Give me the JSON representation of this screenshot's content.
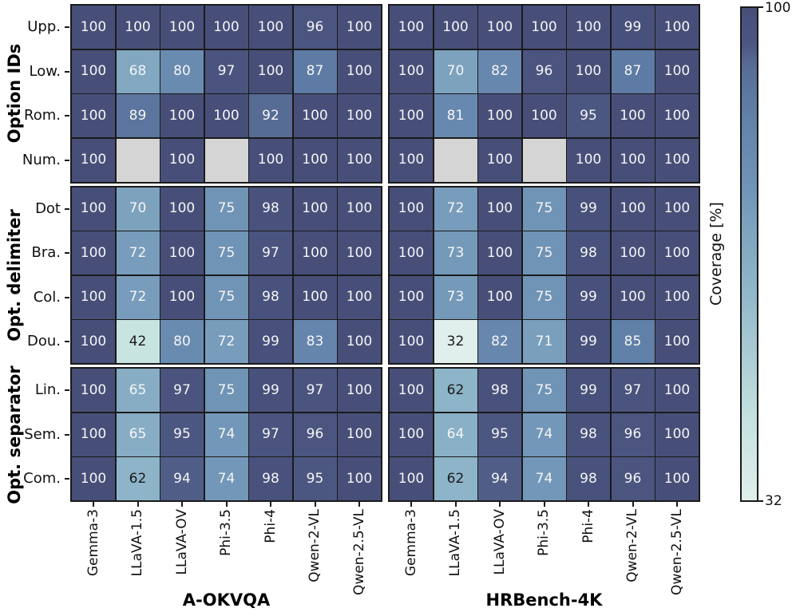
{
  "colorbar": {
    "label": "Coverage [%]",
    "max_label": "100",
    "min_label": "32"
  },
  "chart_data": {
    "type": "heatmap",
    "colorbar_label": "Coverage [%]",
    "vmin": 32,
    "vmax": 100,
    "colormap_stops": [
      [
        32,
        "#e0efec"
      ],
      [
        42,
        "#c8e4e0"
      ],
      [
        62,
        "#8db4c8"
      ],
      [
        70,
        "#7da2be"
      ],
      [
        75,
        "#7094b6"
      ],
      [
        82,
        "#6787ae"
      ],
      [
        87,
        "#5d7ba4"
      ],
      [
        92,
        "#576c94"
      ],
      [
        95,
        "#4c5781"
      ],
      [
        100,
        "#474f79"
      ]
    ],
    "nan_color": "#d5d5d5",
    "dark_text_threshold": 63,
    "row_groups": [
      {
        "label": "Option IDs",
        "rows": [
          "Upp.",
          "Low.",
          "Rom.",
          "Num."
        ]
      },
      {
        "label": "Opt. delimiter",
        "rows": [
          "Dot",
          "Bra.",
          "Col.",
          "Dou."
        ]
      },
      {
        "label": "Opt. separator",
        "rows": [
          "Lin.",
          "Sem.",
          "Com."
        ]
      }
    ],
    "columns": [
      "Gemma-3",
      "LLaVA-1.5",
      "LLaVA-OV",
      "Phi-3.5",
      "Phi-4",
      "Qwen-2-VL",
      "Qwen-2.5-VL"
    ],
    "panels": [
      {
        "title": "A-OKVQA",
        "values": [
          [
            100,
            100,
            100,
            100,
            100,
            96,
            100
          ],
          [
            100,
            68,
            80,
            97,
            100,
            87,
            100
          ],
          [
            100,
            89,
            100,
            100,
            92,
            100,
            100
          ],
          [
            100,
            null,
            100,
            null,
            100,
            100,
            100
          ],
          [
            100,
            70,
            100,
            75,
            98,
            100,
            100
          ],
          [
            100,
            72,
            100,
            75,
            97,
            100,
            100
          ],
          [
            100,
            72,
            100,
            75,
            98,
            100,
            100
          ],
          [
            100,
            42,
            80,
            72,
            99,
            83,
            100
          ],
          [
            100,
            65,
            97,
            75,
            99,
            97,
            100
          ],
          [
            100,
            65,
            95,
            74,
            97,
            96,
            100
          ],
          [
            100,
            62,
            94,
            74,
            98,
            95,
            100
          ]
        ]
      },
      {
        "title": "HRBench-4K",
        "values": [
          [
            100,
            100,
            100,
            100,
            100,
            99,
            100
          ],
          [
            100,
            70,
            82,
            96,
            100,
            87,
            100
          ],
          [
            100,
            81,
            100,
            100,
            95,
            100,
            100
          ],
          [
            100,
            null,
            100,
            null,
            100,
            100,
            100
          ],
          [
            100,
            72,
            100,
            75,
            99,
            100,
            100
          ],
          [
            100,
            73,
            100,
            75,
            98,
            100,
            100
          ],
          [
            100,
            73,
            100,
            75,
            99,
            100,
            100
          ],
          [
            100,
            32,
            82,
            71,
            99,
            85,
            100
          ],
          [
            100,
            62,
            98,
            75,
            99,
            97,
            100
          ],
          [
            100,
            64,
            95,
            74,
            98,
            96,
            100
          ],
          [
            100,
            62,
            94,
            74,
            98,
            96,
            100
          ]
        ]
      }
    ]
  }
}
